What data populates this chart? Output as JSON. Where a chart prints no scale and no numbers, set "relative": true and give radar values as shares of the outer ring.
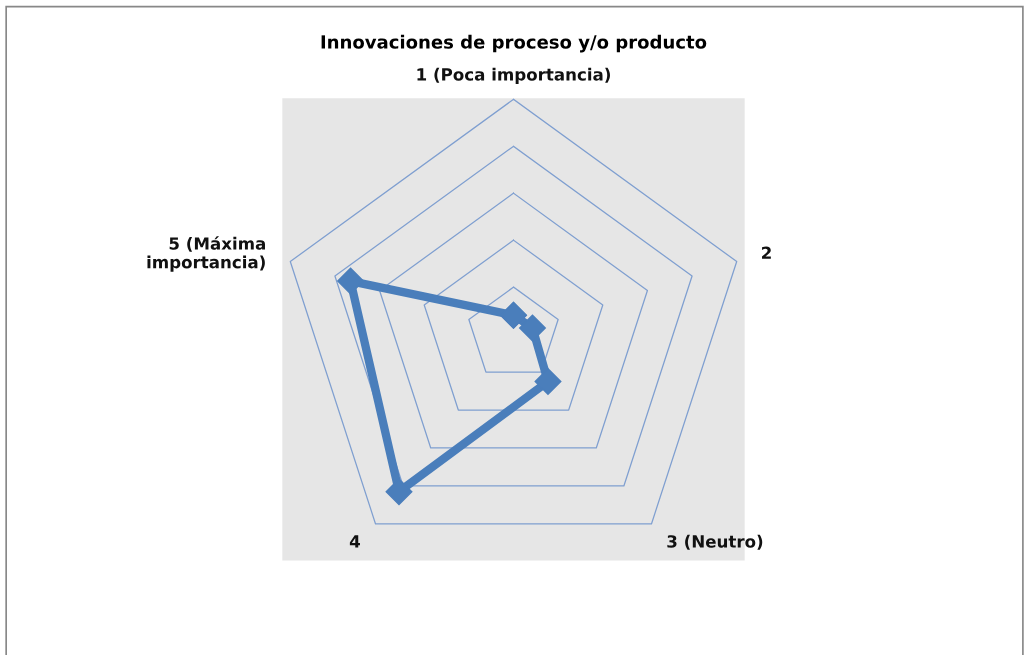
{
  "chart_data": {
    "type": "radar",
    "title": "Innovaciones de proceso y/o producto",
    "categories": [
      "1 (Poca importancia)",
      "2",
      "3 (Neutro)",
      "4",
      "5 (Máxima\nimportancia)"
    ],
    "relative": true,
    "grid": true,
    "marker": "diamond",
    "line_style": "solid",
    "series": [
      {
        "color": "#4a7ebb",
        "values": [
          0.08,
          0.085,
          0.25,
          0.83,
          0.73
        ]
      }
    ]
  }
}
